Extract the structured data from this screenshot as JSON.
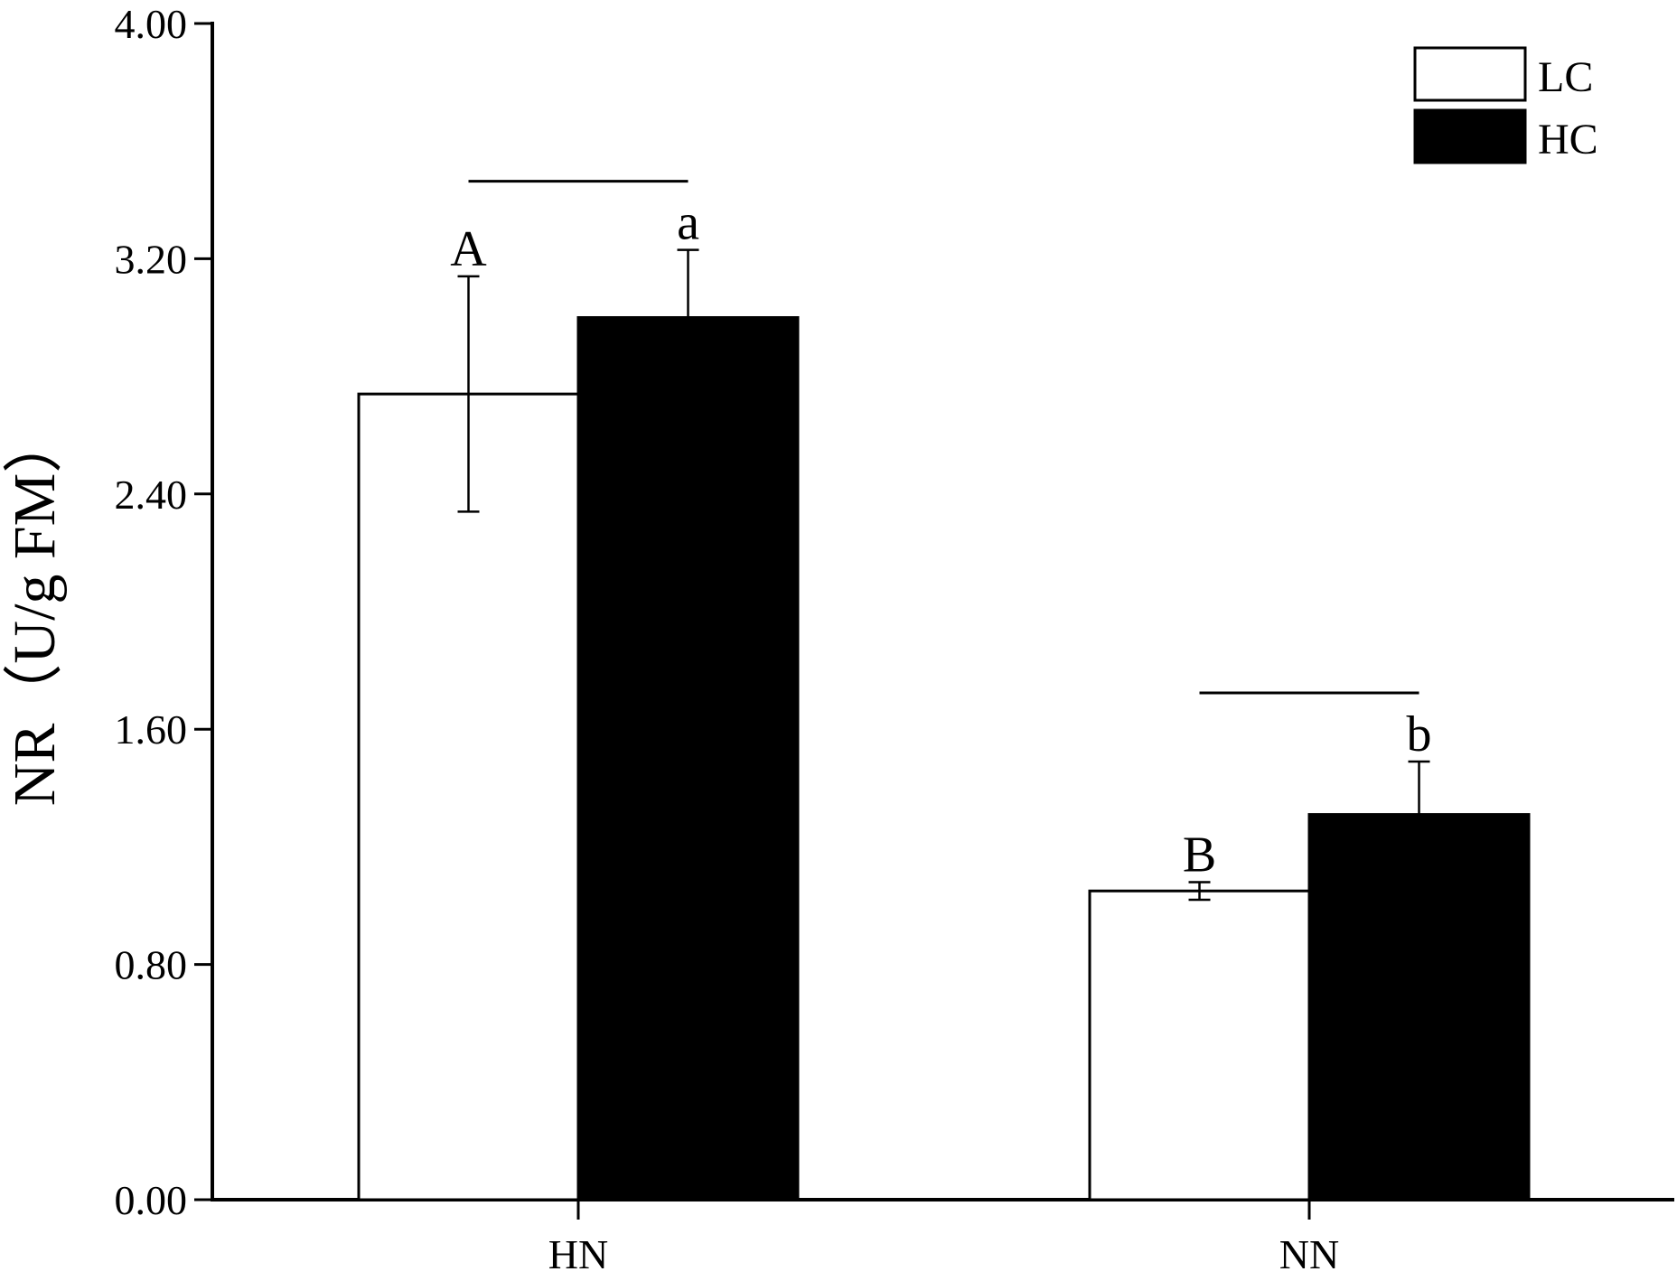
{
  "chart_data": {
    "type": "bar",
    "title": "",
    "xlabel": "",
    "ylabel": "NR（U/g FM）",
    "ylim": [
      0,
      4
    ],
    "yticks": [
      "0.00",
      "0.80",
      "1.60",
      "2.40",
      "3.20",
      "4.00"
    ],
    "categories": [
      "HN",
      "NN"
    ],
    "grid": false,
    "legend_position": "top-right",
    "series": [
      {
        "name": "LC",
        "fill": "#ffffff",
        "stroke": "#000000",
        "values": [
          2.74,
          1.05
        ],
        "errors": [
          0.4,
          0.03
        ],
        "letters": [
          "A",
          "B"
        ]
      },
      {
        "name": "HC",
        "fill": "#000000",
        "stroke": "#000000",
        "values": [
          3.0,
          1.31
        ],
        "errors": [
          0.23,
          0.18
        ],
        "letters": [
          "a",
          "b"
        ]
      }
    ]
  }
}
